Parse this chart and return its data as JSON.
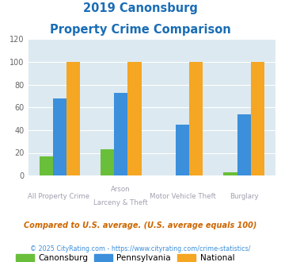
{
  "title_line1": "2019 Canonsburg",
  "title_line2": "Property Crime Comparison",
  "cat_labels_line1": [
    "All Property Crime",
    "Arson",
    "Motor Vehicle Theft",
    "Burglary"
  ],
  "cat_labels_line2": [
    "",
    "Larceny & Theft",
    "",
    ""
  ],
  "canonsburg": [
    17,
    23,
    0,
    3
  ],
  "pennsylvania": [
    68,
    73,
    45,
    54
  ],
  "national": [
    100,
    100,
    100,
    100
  ],
  "colors": {
    "canonsburg": "#6abf3a",
    "pennsylvania": "#3b8fdb",
    "national": "#f5a623"
  },
  "ylim": [
    0,
    120
  ],
  "yticks": [
    0,
    20,
    40,
    60,
    80,
    100,
    120
  ],
  "title_color": "#1a6db5",
  "background_color": "#dce9f0",
  "label_color": "#a0a0b0",
  "footnote1": "Compared to U.S. average. (U.S. average equals 100)",
  "footnote2": "© 2025 CityRating.com - https://www.cityrating.com/crime-statistics/",
  "footnote1_color": "#cc6600",
  "footnote2_color": "#3b8fdb",
  "bar_width": 0.22,
  "legend_labels": [
    "Canonsburg",
    "Pennsylvania",
    "National"
  ]
}
